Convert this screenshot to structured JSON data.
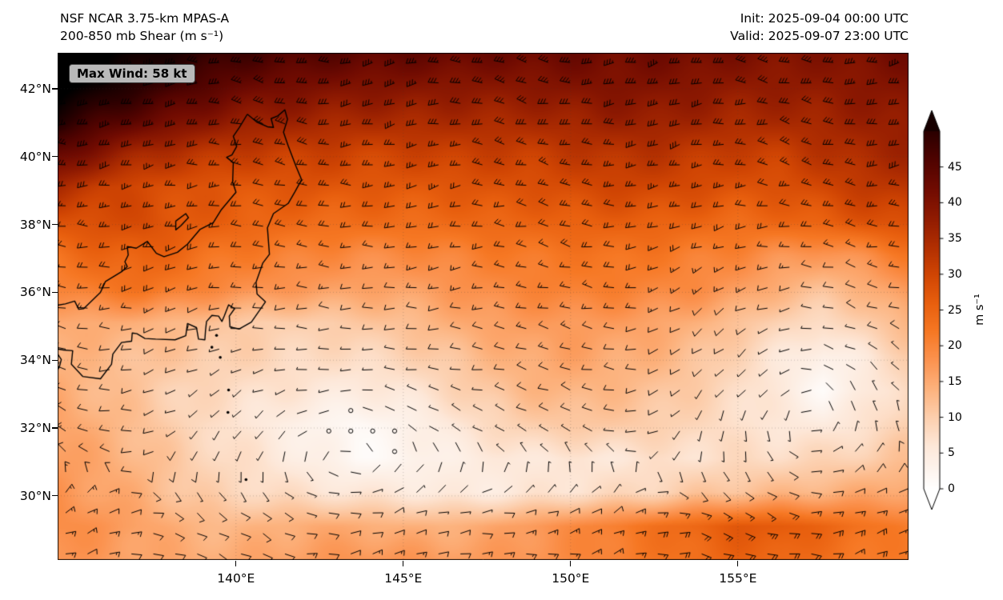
{
  "header": {
    "title_line1": "NSF NCAR 3.75-km MPAS-A",
    "title_line2": "200-850 mb Shear (m s⁻¹)",
    "init_label": "Init: 2025-09-04 00:00 UTC",
    "valid_label": "Valid: 2025-09-07 23:00 UTC"
  },
  "map": {
    "max_wind_label": "Max Wind: 58 kt"
  },
  "axes": {
    "lat_ticks": [
      "42°N",
      "40°N",
      "38°N",
      "36°N",
      "34°N",
      "32°N",
      "30°N"
    ],
    "lon_ticks": [
      "140°E",
      "145°E",
      "150°E",
      "155°E"
    ]
  },
  "colorbar": {
    "tick_labels": [
      "45",
      "40",
      "35",
      "30",
      "25",
      "20",
      "15",
      "10",
      "5",
      "0"
    ],
    "tick_values": [
      45,
      40,
      35,
      30,
      25,
      20,
      15,
      10,
      5,
      0
    ],
    "label": "m s⁻¹",
    "vmin": 0,
    "vmax": 50,
    "extend": "both"
  },
  "chart_data": {
    "type": "heatmap",
    "title": "NSF NCAR 3.75-km MPAS-A 200-850 mb Shear (m s⁻¹)",
    "units": "m s⁻¹",
    "overlay": "wind-barbs",
    "max_wind_kt": 58,
    "extent": {
      "lon_min": 134.67,
      "lon_max": 160.1,
      "lat_min": 28.11,
      "lat_max": 43.06
    },
    "lat_tick_degs": [
      42,
      40,
      38,
      36,
      34,
      32,
      30
    ],
    "lon_tick_degs": [
      140,
      145,
      150,
      155
    ],
    "grid_lons": [
      134.7,
      135.97,
      137.24,
      138.51,
      139.78,
      141.05,
      142.32,
      143.59,
      144.86,
      146.13,
      147.4,
      148.67,
      149.94,
      151.21,
      152.48,
      153.75,
      155.02,
      156.29,
      157.56,
      158.83,
      160.1
    ],
    "grid_lats": [
      43.1,
      42.1,
      41.1,
      40.1,
      39.1,
      38.1,
      37.1,
      36.1,
      35.1,
      34.1,
      33.1,
      32.1,
      31.1,
      30.1,
      29.1,
      28.1
    ],
    "shear_values": [
      [
        60,
        57,
        54,
        51,
        49,
        47,
        46,
        45,
        44,
        44,
        43,
        43,
        43,
        42,
        42,
        42,
        41,
        40,
        40,
        41,
        42
      ],
      [
        58,
        54,
        50,
        47,
        44,
        42,
        41,
        40,
        40,
        39,
        39,
        39,
        40,
        40,
        40,
        39,
        38,
        38,
        38,
        39,
        40
      ],
      [
        52,
        47,
        44,
        41,
        38,
        37,
        36,
        35,
        35,
        35,
        35,
        35,
        36,
        37,
        37,
        36,
        35,
        35,
        36,
        37,
        38
      ],
      [
        44,
        39,
        35,
        33,
        32,
        31,
        31,
        30,
        30,
        31,
        31,
        31,
        32,
        33,
        33,
        32,
        31,
        31,
        33,
        35,
        36
      ],
      [
        35,
        31,
        29,
        28,
        27,
        27,
        28,
        27,
        27,
        27,
        28,
        28,
        29,
        30,
        30,
        29,
        28,
        28,
        30,
        32,
        33
      ],
      [
        28,
        29,
        29,
        27,
        26,
        25,
        24,
        24,
        24,
        24,
        25,
        25,
        26,
        26,
        26,
        25,
        24,
        25,
        26,
        28,
        29
      ],
      [
        23,
        25,
        26,
        24,
        22,
        21,
        20,
        19,
        19,
        20,
        21,
        22,
        22,
        23,
        22,
        21,
        20,
        18,
        17,
        19,
        22
      ],
      [
        20,
        22,
        23,
        21,
        19,
        18,
        17,
        16,
        16,
        17,
        19,
        20,
        21,
        21,
        20,
        19,
        17,
        14,
        12,
        14,
        18
      ],
      [
        15,
        15,
        14,
        13,
        11,
        10,
        10,
        11,
        12,
        14,
        16,
        17,
        17,
        17,
        16,
        14,
        12,
        9,
        8,
        10,
        14
      ],
      [
        14,
        13,
        12,
        11,
        10,
        9,
        8,
        8,
        9,
        11,
        13,
        15,
        16,
        15,
        14,
        12,
        9,
        6,
        3,
        6,
        10
      ],
      [
        15,
        13,
        11,
        9,
        8,
        7,
        6,
        5,
        6,
        8,
        11,
        13,
        14,
        13,
        12,
        10,
        8,
        5,
        1.5,
        5,
        9
      ],
      [
        16,
        14,
        12,
        9,
        7,
        5,
        3,
        1.5,
        3,
        5,
        8,
        10,
        11,
        11,
        10,
        9,
        7,
        6,
        5,
        7,
        10
      ],
      [
        17,
        15,
        13,
        10,
        8,
        6,
        4,
        1.5,
        2,
        4,
        5,
        6,
        6,
        6,
        7,
        7,
        8,
        8,
        9,
        10,
        12
      ],
      [
        18,
        16,
        14,
        11,
        9,
        8,
        7,
        6,
        6,
        5,
        5,
        6,
        7,
        8,
        9,
        11,
        12,
        13,
        14,
        15,
        16
      ],
      [
        19,
        18,
        16,
        14,
        13,
        14,
        15,
        15,
        14,
        14,
        15,
        17,
        19,
        21,
        23,
        25,
        27,
        27,
        25,
        23,
        21
      ],
      [
        18,
        17,
        16,
        15,
        15,
        16,
        17,
        18,
        18,
        17,
        17,
        18,
        19,
        21,
        22,
        24,
        25,
        25,
        23,
        22,
        21
      ]
    ],
    "colormap_stops": [
      [
        0,
        "#ffffff"
      ],
      [
        3,
        "#fdf3ec"
      ],
      [
        6,
        "#fde8d9"
      ],
      [
        10,
        "#fccfae"
      ],
      [
        14,
        "#fcb27d"
      ],
      [
        18,
        "#fb9350"
      ],
      [
        22,
        "#f67824"
      ],
      [
        26,
        "#e85f0e"
      ],
      [
        30,
        "#d04503"
      ],
      [
        34,
        "#b02e01"
      ],
      [
        38,
        "#8f1a01"
      ],
      [
        42,
        "#700b01"
      ],
      [
        46,
        "#500300"
      ],
      [
        50,
        "#2b0000"
      ],
      [
        56,
        "#000000"
      ]
    ],
    "circulation_centers": [
      {
        "lon": 143.9,
        "lat": 31.6
      },
      {
        "lon": 157.6,
        "lat": 33.8
      }
    ],
    "coastline": [
      [
        [
          140.34,
          41.25
        ],
        [
          140.62,
          41.02
        ],
        [
          140.94,
          40.88
        ],
        [
          141.12,
          40.86
        ],
        [
          141.05,
          41.12
        ],
        [
          141.25,
          41.2
        ],
        [
          141.46,
          41.38
        ],
        [
          141.54,
          41.1
        ],
        [
          141.42,
          40.72
        ],
        [
          141.56,
          40.32
        ],
        [
          141.8,
          39.7
        ],
        [
          141.96,
          39.32
        ],
        [
          141.76,
          38.96
        ],
        [
          141.56,
          38.62
        ],
        [
          141.12,
          38.32
        ],
        [
          140.94,
          37.9
        ],
        [
          141.0,
          37.12
        ],
        [
          140.8,
          36.86
        ],
        [
          140.6,
          36.3
        ],
        [
          140.63,
          35.95
        ],
        [
          140.88,
          35.72
        ],
        [
          140.46,
          35.12
        ],
        [
          140.1,
          34.92
        ],
        [
          139.82,
          34.98
        ],
        [
          139.8,
          35.3
        ],
        [
          139.96,
          35.52
        ],
        [
          139.78,
          35.63
        ],
        [
          139.65,
          35.3
        ],
        [
          139.58,
          35.14
        ],
        [
          139.48,
          35.3
        ],
        [
          139.28,
          35.32
        ],
        [
          139.12,
          35.14
        ],
        [
          139.09,
          34.88
        ],
        [
          139.07,
          34.6
        ],
        [
          138.88,
          34.62
        ],
        [
          138.82,
          34.96
        ],
        [
          138.55,
          35.08
        ],
        [
          138.5,
          34.72
        ],
        [
          138.18,
          34.6
        ],
        [
          137.6,
          34.62
        ],
        [
          137.28,
          34.64
        ],
        [
          137.04,
          34.78
        ],
        [
          136.9,
          34.8
        ],
        [
          136.88,
          34.56
        ],
        [
          136.58,
          34.52
        ],
        [
          136.32,
          34.18
        ],
        [
          136.28,
          33.88
        ],
        [
          135.95,
          33.45
        ],
        [
          135.42,
          33.52
        ],
        [
          135.08,
          33.88
        ],
        [
          135.12,
          34.28
        ],
        [
          134.85,
          34.3
        ],
        [
          134.67,
          34.33
        ]
      ],
      [
        [
          140.34,
          41.25
        ],
        [
          140.1,
          40.86
        ],
        [
          139.92,
          40.6
        ],
        [
          140.02,
          40.3
        ],
        [
          139.88,
          40.05
        ],
        [
          139.72,
          39.98
        ],
        [
          139.92,
          39.82
        ],
        [
          139.9,
          39.25
        ],
        [
          140.0,
          38.95
        ],
        [
          139.55,
          38.42
        ],
        [
          139.32,
          38.05
        ],
        [
          138.92,
          37.85
        ],
        [
          138.55,
          37.42
        ],
        [
          138.25,
          37.18
        ],
        [
          137.85,
          37.05
        ],
        [
          137.62,
          37.15
        ],
        [
          137.35,
          37.5
        ],
        [
          137.02,
          37.3
        ],
        [
          136.75,
          37.35
        ],
        [
          136.78,
          37.1
        ],
        [
          136.68,
          36.9
        ],
        [
          136.75,
          36.76
        ],
        [
          136.6,
          36.62
        ],
        [
          136.1,
          36.32
        ],
        [
          135.95,
          36.0
        ],
        [
          135.45,
          35.52
        ],
        [
          135.3,
          35.5
        ],
        [
          135.18,
          35.74
        ],
        [
          134.9,
          35.66
        ],
        [
          134.67,
          35.62
        ]
      ],
      [
        [
          138.2,
          38.1
        ],
        [
          138.5,
          38.32
        ],
        [
          138.58,
          38.2
        ],
        [
          138.35,
          37.96
        ],
        [
          138.2,
          37.84
        ],
        [
          138.2,
          38.1
        ]
      ],
      [
        [
          134.67,
          34.18
        ],
        [
          134.78,
          34.02
        ],
        [
          134.72,
          33.8
        ],
        [
          134.67,
          33.72
        ]
      ]
    ],
    "island_points": [
      [
        139.42,
        34.73
      ],
      [
        139.28,
        34.38
      ],
      [
        139.53,
        34.08
      ],
      [
        139.78,
        33.12
      ],
      [
        139.76,
        32.46
      ],
      [
        140.3,
        30.48
      ]
    ]
  }
}
